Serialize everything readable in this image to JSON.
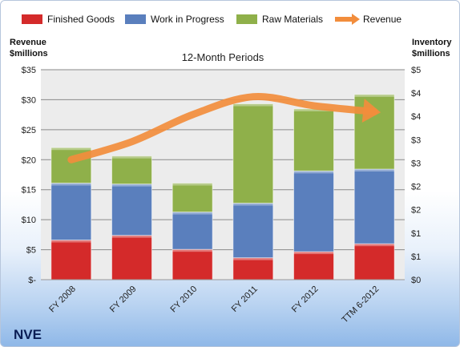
{
  "chart_data": {
    "type": "bar",
    "stacked": true,
    "title": "12-Month Periods",
    "categories": [
      "FY 2008",
      "FY 2009",
      "FY 2010",
      "FY 2011",
      "FY 2012",
      "TTM 6-2012"
    ],
    "series": [
      {
        "name": "Finished Goods",
        "axis": "right",
        "color": "#d42a2a",
        "values": [
          0.85,
          0.95,
          0.65,
          0.47,
          0.6,
          0.77
        ]
      },
      {
        "name": "Work in Progress",
        "axis": "right",
        "color": "#5a7fbd",
        "values": [
          1.22,
          1.1,
          0.8,
          1.17,
          1.73,
          1.6
        ]
      },
      {
        "name": "Raw Materials",
        "axis": "right",
        "color": "#8fb04a",
        "values": [
          0.76,
          0.6,
          0.62,
          2.13,
          1.33,
          1.6
        ]
      },
      {
        "name": "Revenue",
        "axis": "left",
        "type": "line",
        "color": "#f28d3c",
        "values": [
          20,
          23,
          27.5,
          30.5,
          29,
          28
        ]
      }
    ],
    "left_axis": {
      "label": "Revenue $millions",
      "ylim": [
        0,
        35
      ],
      "ticks": [
        0,
        5,
        10,
        15,
        20,
        25,
        30,
        35
      ],
      "tick_labels": [
        "$-",
        "$5",
        "$10",
        "$15",
        "$20",
        "$25",
        "$30",
        "$35"
      ]
    },
    "right_axis": {
      "label": "Inventory $millions",
      "ylim": [
        0,
        4.5
      ],
      "tick_labels": [
        "$0",
        "$1",
        "$1",
        "$2",
        "$2",
        "$3",
        "$3",
        "$4",
        "$4",
        "$5"
      ]
    },
    "grid": true,
    "legend_position": "top",
    "company_label": "NVE"
  },
  "labels": {
    "left_axis_line1": "Revenue",
    "left_axis_line2": "$millions",
    "right_axis_line1": "Inventory",
    "right_axis_line2": "$millions"
  }
}
